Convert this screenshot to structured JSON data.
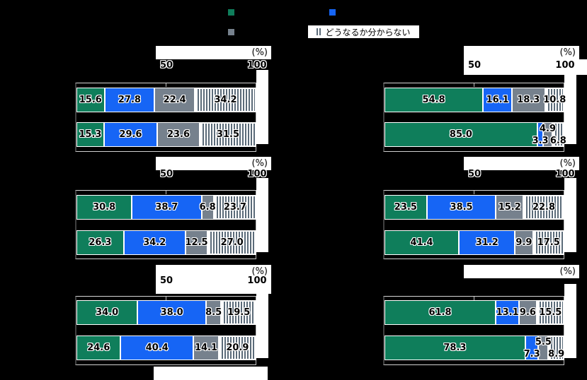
{
  "colors": {
    "background": "#000000",
    "green": "#0F7E5B",
    "blue": "#1665F5",
    "gray": "#76818D",
    "stripe": "#5B6B79",
    "label_text": "#000000",
    "label_outline": "#FFFFFF"
  },
  "legend": {
    "items": [
      {
        "swatch": "green-square",
        "label": ""
      },
      {
        "swatch": "blue-square",
        "label": ""
      },
      {
        "swatch": "gray-square",
        "label": ""
      },
      {
        "swatch": "vertical-stripes",
        "label": "どうなるか分からない"
      }
    ]
  },
  "axis": {
    "percent_label": "(%)",
    "tick_50": "50",
    "tick_100": "100"
  },
  "chart_data": [
    {
      "type": "bar",
      "stacked": true,
      "orientation": "horizontal",
      "position": "top-left",
      "col": "left",
      "row": 0,
      "xlim": [
        0,
        100
      ],
      "ticks": "halo",
      "series_names": [
        "series-1-green",
        "series-2-blue",
        "series-3-gray",
        "series-4-striped"
      ],
      "bars": [
        {
          "values": [
            15.6,
            27.8,
            22.4,
            34.2
          ],
          "labels": [
            "15.6",
            "27.8",
            "22.4",
            "34.2"
          ]
        },
        {
          "values": [
            15.3,
            29.6,
            23.6,
            31.5
          ],
          "labels": [
            "15.3",
            "29.6",
            "23.6",
            "31.5"
          ]
        }
      ]
    },
    {
      "type": "bar",
      "stacked": true,
      "orientation": "horizontal",
      "position": "top-right",
      "col": "right",
      "row": 0,
      "xlim": [
        0,
        100
      ],
      "ticks": "white",
      "series_names": [
        "series-1-green",
        "series-2-blue",
        "series-3-gray",
        "series-4-striped"
      ],
      "bars": [
        {
          "values": [
            54.8,
            16.1,
            18.3,
            10.8
          ],
          "labels": [
            "54.8",
            "16.1",
            "18.3",
            "10.8"
          ]
        },
        {
          "values": [
            85.0,
            3.3,
            4.9,
            6.8
          ],
          "labels": [
            "85.0",
            "3.3",
            "4.9",
            "6.8"
          ],
          "label_dy": [
            0,
            9,
            -8,
            9
          ]
        }
      ]
    },
    {
      "type": "bar",
      "stacked": true,
      "orientation": "horizontal",
      "position": "middle-left",
      "col": "left",
      "row": 1,
      "xlim": [
        0,
        100
      ],
      "ticks": "halo",
      "series_names": [
        "series-1-green",
        "series-2-blue",
        "series-3-gray",
        "series-4-striped"
      ],
      "bars": [
        {
          "values": [
            30.8,
            38.7,
            6.8,
            23.7
          ],
          "labels": [
            "30.8",
            "38.7",
            "6.8",
            "23.7"
          ]
        },
        {
          "values": [
            26.3,
            34.2,
            12.5,
            27.0
          ],
          "labels": [
            "26.3",
            "34.2",
            "12.5",
            "27.0"
          ]
        }
      ]
    },
    {
      "type": "bar",
      "stacked": true,
      "orientation": "horizontal",
      "position": "middle-right",
      "col": "right",
      "row": 1,
      "xlim": [
        0,
        100
      ],
      "ticks": "halo",
      "series_names": [
        "series-1-green",
        "series-2-blue",
        "series-3-gray",
        "series-4-striped"
      ],
      "bars": [
        {
          "values": [
            23.5,
            38.5,
            15.2,
            22.8
          ],
          "labels": [
            "23.5",
            "38.5",
            "15.2",
            "22.8"
          ]
        },
        {
          "values": [
            41.4,
            31.2,
            9.9,
            17.5
          ],
          "labels": [
            "41.4",
            "31.2",
            "9.9",
            "17.5"
          ]
        }
      ]
    },
    {
      "type": "bar",
      "stacked": true,
      "orientation": "horizontal",
      "position": "bottom-left",
      "col": "left",
      "row": 2,
      "xlim": [
        0,
        100
      ],
      "ticks": "white",
      "series_names": [
        "series-1-green",
        "series-2-blue",
        "series-3-gray",
        "series-4-striped"
      ],
      "bars": [
        {
          "values": [
            34.0,
            38.0,
            8.5,
            19.5
          ],
          "labels": [
            "34.0",
            "38.0",
            "8.5",
            "19.5"
          ]
        },
        {
          "values": [
            24.6,
            40.4,
            14.1,
            20.9
          ],
          "labels": [
            "24.6",
            "40.4",
            "14.1",
            "20.9"
          ]
        }
      ]
    },
    {
      "type": "bar",
      "stacked": true,
      "orientation": "horizontal",
      "position": "bottom-right",
      "col": "right",
      "row": 2,
      "xlim": [
        0,
        100
      ],
      "ticks": "none",
      "series_names": [
        "series-1-green",
        "series-2-blue",
        "series-3-gray",
        "series-4-striped"
      ],
      "bars": [
        {
          "values": [
            61.8,
            13.1,
            9.6,
            15.5
          ],
          "labels": [
            "61.8",
            "13.1",
            "9.6",
            "15.5"
          ]
        },
        {
          "values": [
            78.3,
            7.3,
            5.5,
            8.9
          ],
          "labels": [
            "78.3",
            "7.3",
            "5.5",
            "8.9"
          ],
          "label_dy": [
            0,
            9,
            -8,
            9
          ]
        }
      ]
    }
  ]
}
